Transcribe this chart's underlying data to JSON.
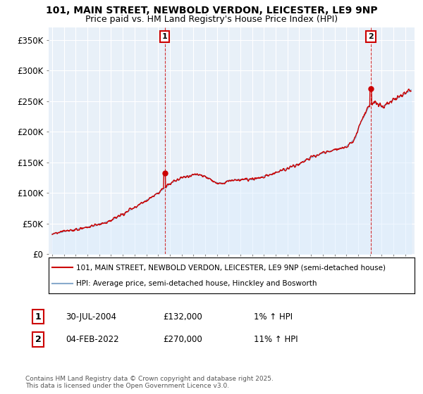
{
  "title1": "101, MAIN STREET, NEWBOLD VERDON, LEICESTER, LE9 9NP",
  "title2": "Price paid vs. HM Land Registry's House Price Index (HPI)",
  "ylabel_ticks": [
    "£0",
    "£50K",
    "£100K",
    "£150K",
    "£200K",
    "£250K",
    "£300K",
    "£350K"
  ],
  "ytick_values": [
    0,
    50000,
    100000,
    150000,
    200000,
    250000,
    300000,
    350000
  ],
  "ylim": [
    0,
    370000
  ],
  "xlim_start": 1994.7,
  "xlim_end": 2025.8,
  "purchase1_x": 2004.57,
  "purchase1_y": 132000,
  "purchase2_x": 2022.09,
  "purchase2_y": 270000,
  "legend_line1": "101, MAIN STREET, NEWBOLD VERDON, LEICESTER, LE9 9NP (semi-detached house)",
  "legend_line2": "HPI: Average price, semi-detached house, Hinckley and Bosworth",
  "annot1_label": "1",
  "annot1_date": "30-JUL-2004",
  "annot1_price": "£132,000",
  "annot1_hpi": "1% ↑ HPI",
  "annot2_label": "2",
  "annot2_date": "04-FEB-2022",
  "annot2_price": "£270,000",
  "annot2_hpi": "11% ↑ HPI",
  "copyright_text": "Contains HM Land Registry data © Crown copyright and database right 2025.\nThis data is licensed under the Open Government Licence v3.0.",
  "line_color_red": "#cc0000",
  "line_color_blue": "#88aacc",
  "fill_color_blue": "#ddeeff",
  "dashed_line_color": "#cc0000",
  "background_color": "#ffffff",
  "plot_bg_color": "#e8f0f8",
  "grid_color": "#ffffff"
}
